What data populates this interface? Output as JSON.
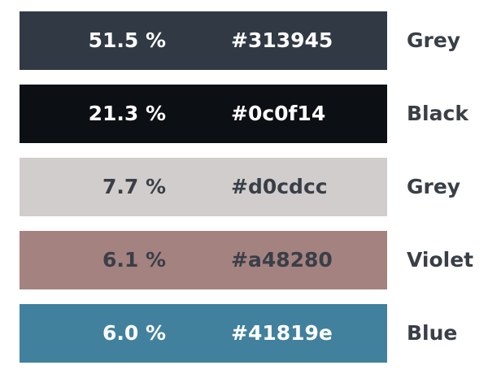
{
  "palette": {
    "colors": [
      {
        "percent": "51.5 %",
        "hex": "#313945",
        "name": "Grey",
        "swatch_color": "#313945",
        "text_color": "#ffffff"
      },
      {
        "percent": "21.3 %",
        "hex": "#0c0f14",
        "name": "Black",
        "swatch_color": "#0c0f14",
        "text_color": "#ffffff"
      },
      {
        "percent": "7.7 %",
        "hex": "#d0cdcc",
        "name": "Grey",
        "swatch_color": "#d0cdcc",
        "text_color": "#3a3f47"
      },
      {
        "percent": "6.1 %",
        "hex": "#a48280",
        "name": "Violet",
        "swatch_color": "#a48280",
        "text_color": "#3a3f47"
      },
      {
        "percent": "6.0 %",
        "hex": "#41819e",
        "name": "Blue",
        "swatch_color": "#41819e",
        "text_color": "#ffffff"
      }
    ]
  }
}
